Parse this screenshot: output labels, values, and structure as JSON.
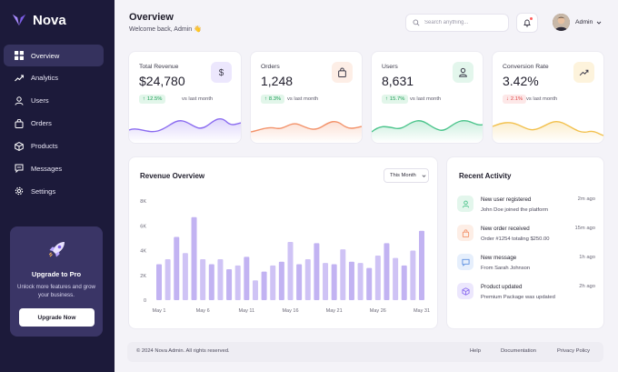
{
  "brand": {
    "name": "Nova",
    "accent": "#7b5ce6"
  },
  "sidebar": {
    "items": [
      {
        "label": "Overview",
        "icon": "grid-icon",
        "active": true
      },
      {
        "label": "Analytics",
        "icon": "trend-icon"
      },
      {
        "label": "Users",
        "icon": "user-icon"
      },
      {
        "label": "Orders",
        "icon": "bag-icon"
      },
      {
        "label": "Products",
        "icon": "box-icon"
      },
      {
        "label": "Messages",
        "icon": "chat-icon"
      },
      {
        "label": "Settings",
        "icon": "gear-icon"
      }
    ],
    "upgrade": {
      "title": "Upgrade to Pro",
      "description": "Unlock more features and grow your business.",
      "button": "Upgrade Now"
    }
  },
  "header": {
    "title": "Overview",
    "subtitle": "Welcome back, Admin 👋",
    "search_placeholder": "Search anything...",
    "user_name": "Admin"
  },
  "stats": [
    {
      "label": "Total Revenue",
      "value": "$24,780",
      "change": "12.5%",
      "direction": "up",
      "vs": "vs last month",
      "color": "#8b6cf0",
      "icon_bg": "#ece7fd"
    },
    {
      "label": "Orders",
      "value": "1,248",
      "change": "8.3%",
      "direction": "up",
      "vs": "vs last month",
      "color": "#f3926a",
      "icon_bg": "#fdeee6"
    },
    {
      "label": "Users",
      "value": "8,631",
      "change": "15.7%",
      "direction": "up",
      "vs": "vs last month",
      "color": "#4cc48c",
      "icon_bg": "#e3f6ec"
    },
    {
      "label": "Conversion Rate",
      "value": "3.42%",
      "change": "2.1%",
      "direction": "down",
      "vs": "vs last month",
      "color": "#f2c14e",
      "icon_bg": "#fdf3dc"
    }
  ],
  "revenue": {
    "title": "Revenue Overview",
    "period": "This Month"
  },
  "chart_data": {
    "type": "bar",
    "title": "Revenue Overview",
    "ylim": [
      0,
      8000
    ],
    "y_ticks": [
      "0",
      "2K",
      "4K",
      "6K",
      "8K"
    ],
    "x_tick_labels": [
      "May 1",
      "May 6",
      "May 11",
      "May 16",
      "May 21",
      "May 26",
      "May 31"
    ],
    "x_tick_days": [
      1,
      6,
      11,
      16,
      21,
      26,
      31
    ],
    "days": [
      1,
      2,
      3,
      4,
      5,
      6,
      7,
      8,
      9,
      10,
      11,
      12,
      13,
      14,
      15,
      16,
      17,
      18,
      19,
      20,
      21,
      22,
      23,
      24,
      25,
      26,
      27,
      28,
      29,
      30,
      31
    ],
    "values": [
      2900,
      3300,
      5100,
      3800,
      6700,
      3300,
      2900,
      3300,
      2500,
      2800,
      3500,
      1600,
      2300,
      2800,
      3100,
      4700,
      2900,
      3300,
      4600,
      3000,
      2900,
      4100,
      3100,
      3000,
      2600,
      3600,
      4600,
      3400,
      2800,
      4000,
      5600
    ]
  },
  "activity": {
    "title": "Recent Activity",
    "items": [
      {
        "title": "New user registered",
        "desc": "John Doe joined the platform",
        "time": "2m ago",
        "icon": "user-icon",
        "color": "#4cc48c",
        "bg": "#e3f6ec"
      },
      {
        "title": "New order received",
        "desc": "Order #1254 totaling $250.00",
        "time": "15m ago",
        "icon": "bag-icon",
        "color": "#f3926a",
        "bg": "#fdeee6"
      },
      {
        "title": "New message",
        "desc": "From Sarah Johnson",
        "time": "1h ago",
        "icon": "chat-icon",
        "color": "#5b8fe0",
        "bg": "#e6effc"
      },
      {
        "title": "Product updated",
        "desc": "Premium Package was updated",
        "time": "2h ago",
        "icon": "box-icon",
        "color": "#8b6cf0",
        "bg": "#ece7fd"
      }
    ]
  },
  "footer": {
    "copyright": "© 2024 Nova Admin. All rights reserved.",
    "links": [
      "Help",
      "Documentation",
      "Privacy Policy"
    ]
  }
}
